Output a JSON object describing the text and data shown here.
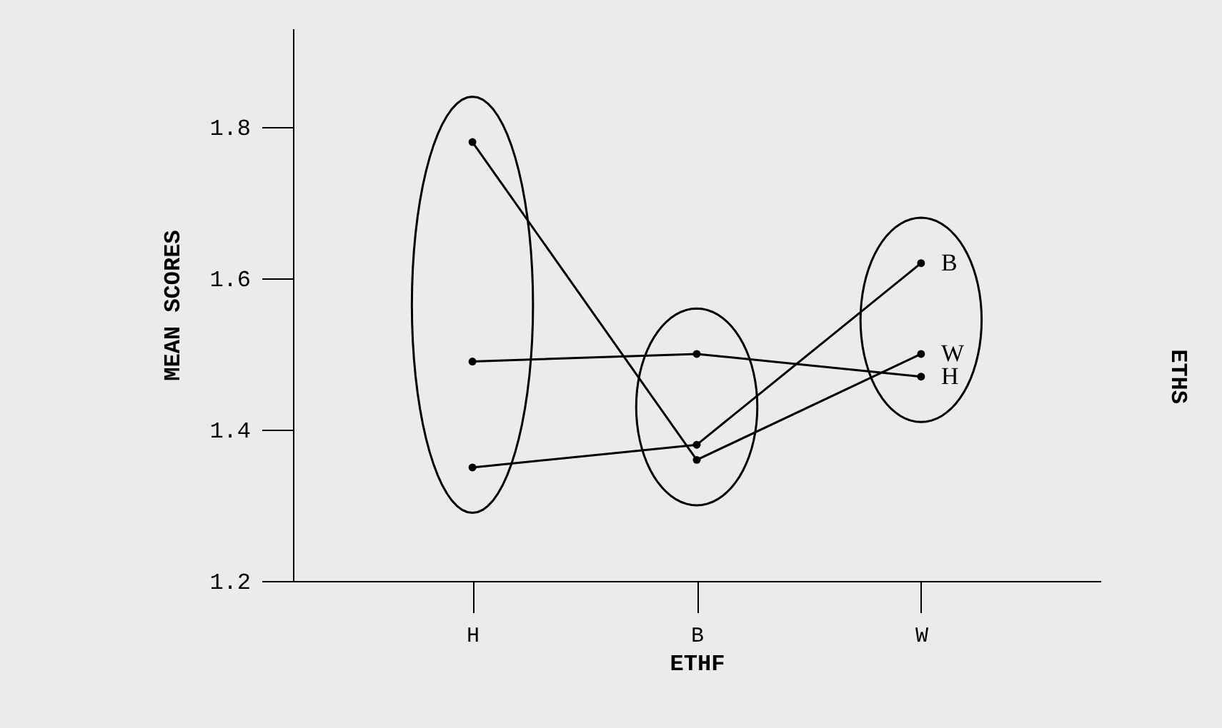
{
  "chart_data": {
    "type": "line",
    "xlabel": "ETHF",
    "ylabel": "MEAN SCORES",
    "legend_title": "ETHS",
    "categories": [
      "H",
      "B",
      "W"
    ],
    "series": [
      {
        "name": "B",
        "color": "#000000",
        "values": [
          1.35,
          1.38,
          1.62
        ]
      },
      {
        "name": "W",
        "color": "#000000",
        "values": [
          1.78,
          1.36,
          1.5
        ]
      },
      {
        "name": "H",
        "color": "#000000",
        "values": [
          1.49,
          1.5,
          1.47
        ]
      }
    ],
    "ylim": [
      1.2,
      1.93
    ],
    "yticks": [
      1.2,
      1.4,
      1.6,
      1.8
    ],
    "grid": false,
    "legend": "right",
    "marker": "circle",
    "line_style": "solid"
  }
}
